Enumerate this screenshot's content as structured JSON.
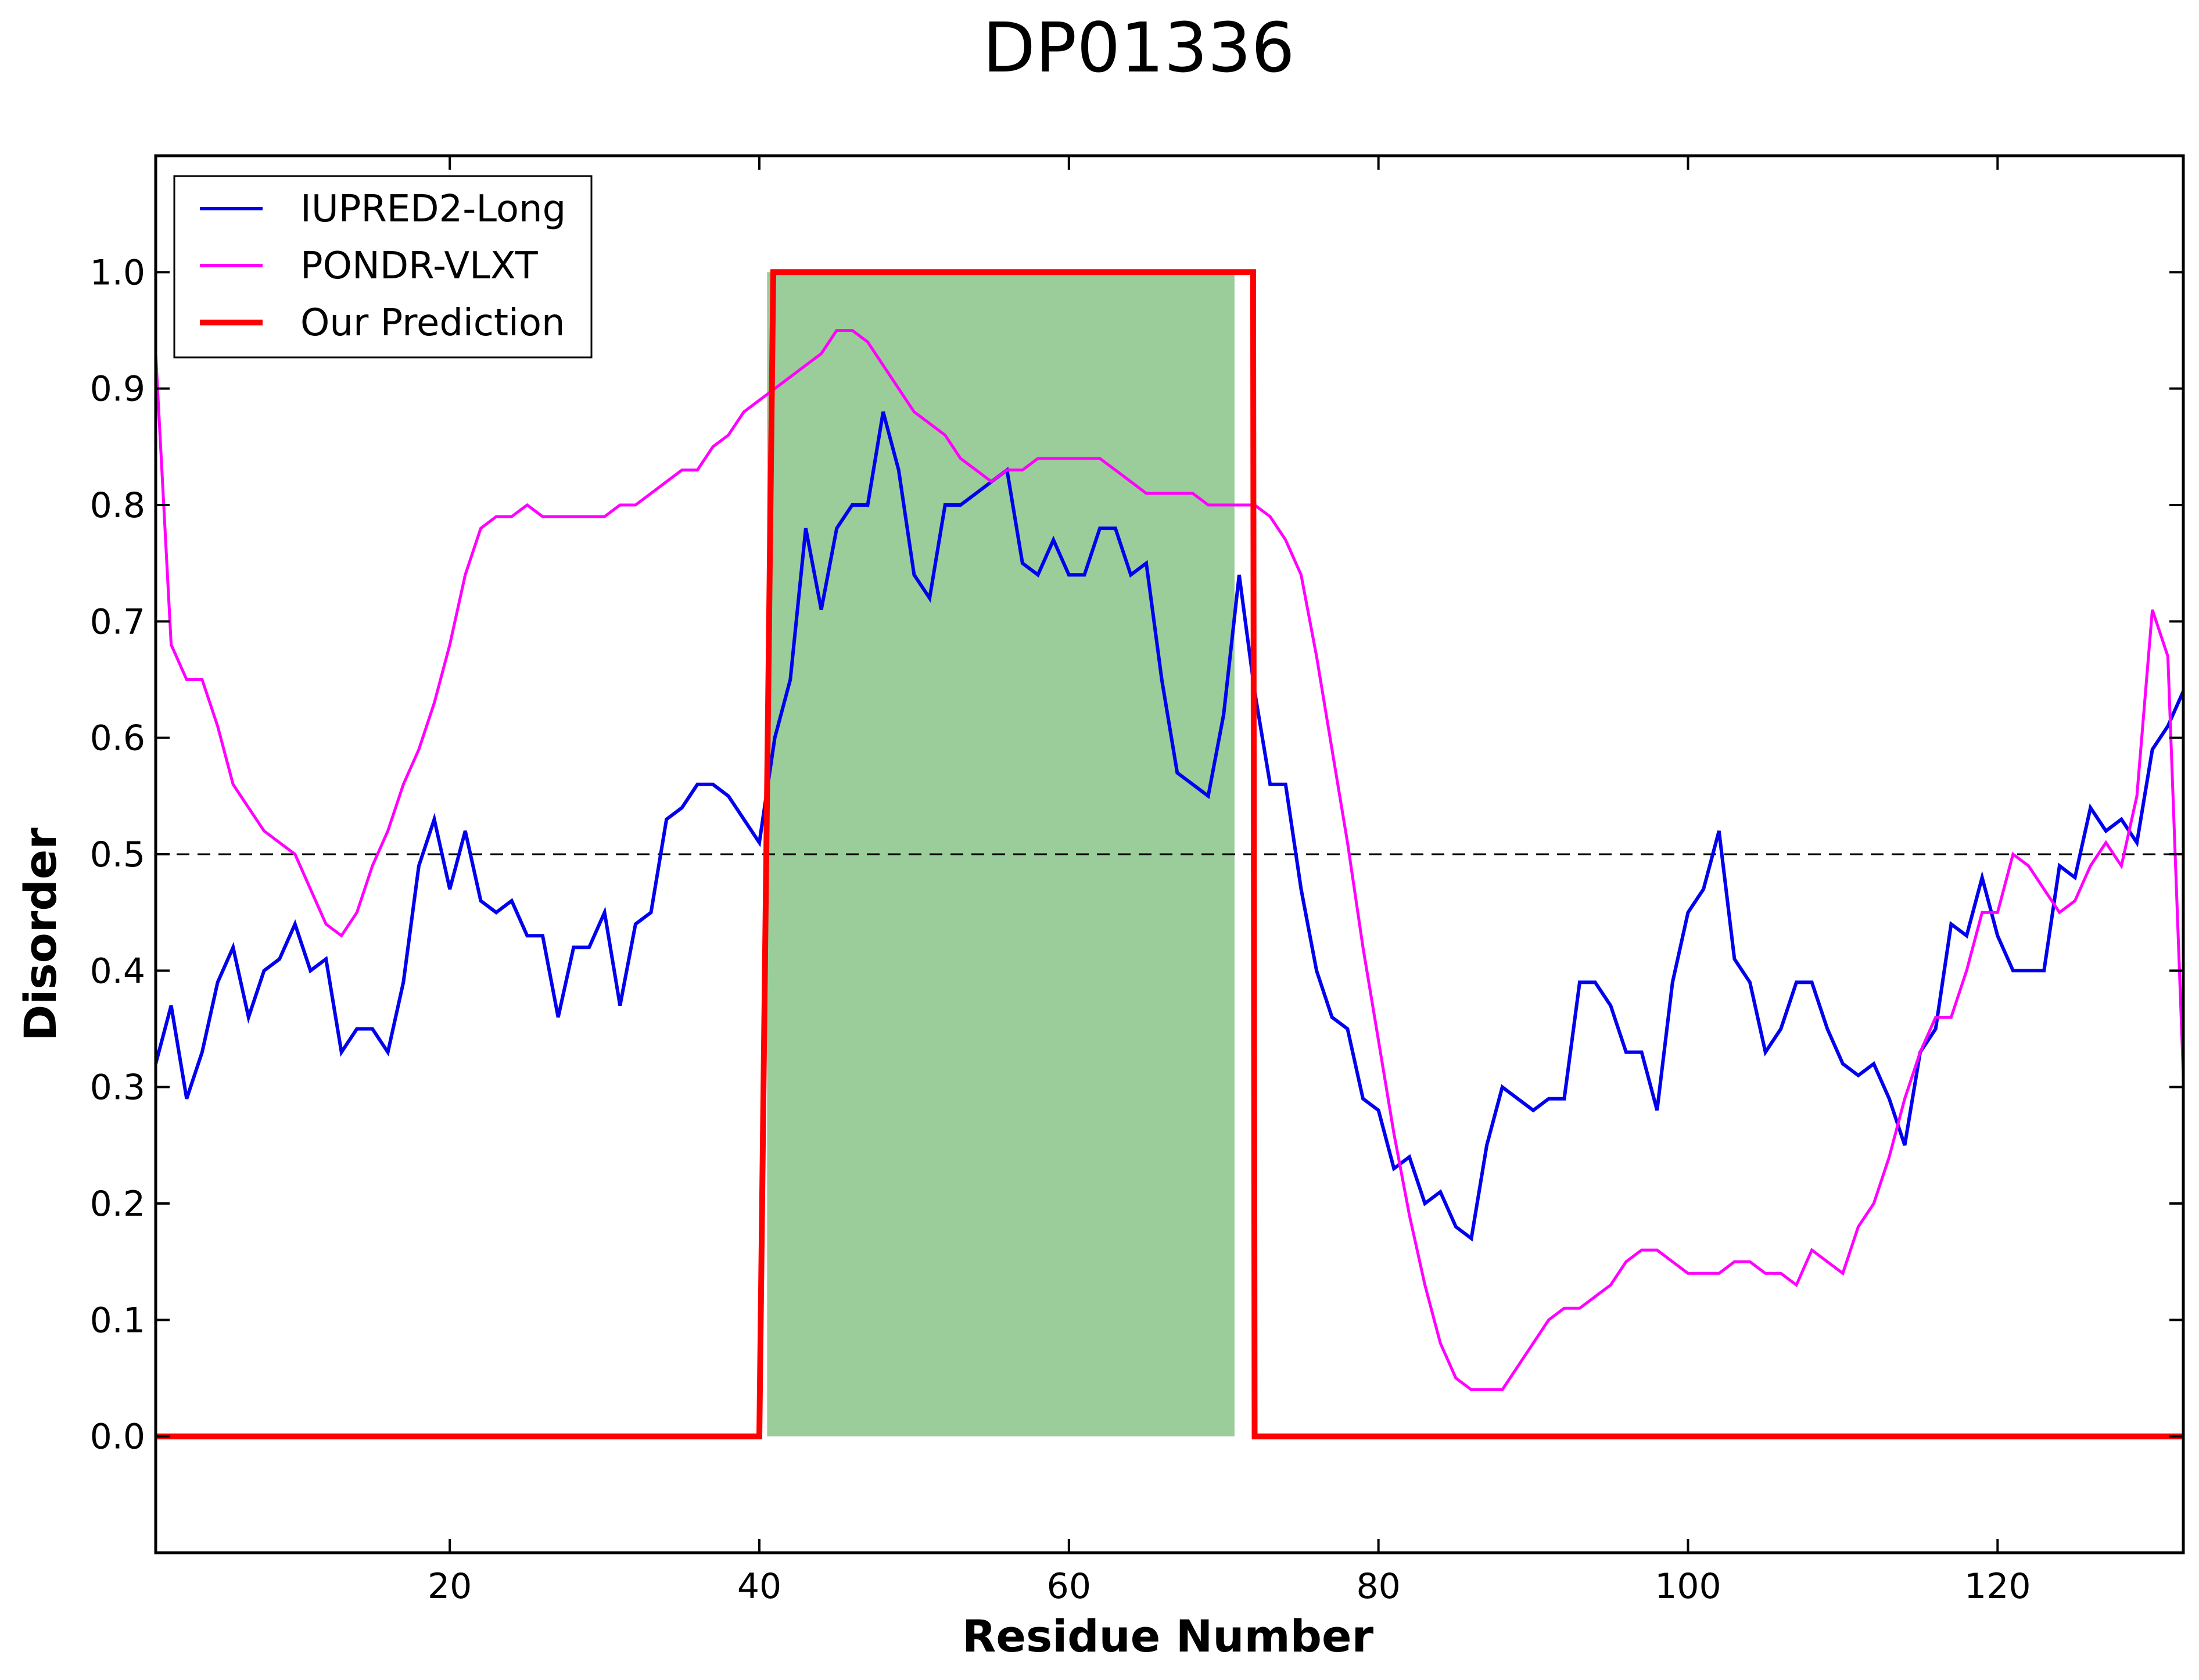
{
  "chart_data": {
    "type": "line",
    "title": "DP01336",
    "xlabel": "Residue Number",
    "ylabel": "Disorder",
    "xlim": [
      1,
      132
    ],
    "ylim": [
      -0.1,
      1.1
    ],
    "xticks": [
      20,
      40,
      60,
      80,
      100,
      120
    ],
    "yticks": [
      0.0,
      0.1,
      0.2,
      0.3,
      0.4,
      0.5,
      0.6,
      0.7,
      0.8,
      0.9,
      1.0
    ],
    "threshold": 0.5,
    "shaded_region": {
      "x": [
        40.5,
        70.7
      ],
      "y": [
        0,
        1.0
      ],
      "color": "#9acd9a"
    },
    "legend": {
      "position": "top-left"
    },
    "series": [
      {
        "name": "IUPRED2-Long",
        "color": "#0000ee",
        "x": [
          1,
          2,
          3,
          4,
          5,
          6,
          7,
          8,
          9,
          10,
          11,
          12,
          13,
          14,
          15,
          16,
          17,
          18,
          19,
          20,
          21,
          22,
          23,
          24,
          25,
          26,
          27,
          28,
          29,
          30,
          31,
          32,
          33,
          34,
          35,
          36,
          37,
          38,
          39,
          40,
          41,
          42,
          43,
          44,
          45,
          46,
          47,
          48,
          49,
          50,
          51,
          52,
          53,
          54,
          55,
          56,
          57,
          58,
          59,
          60,
          61,
          62,
          63,
          64,
          65,
          66,
          67,
          68,
          69,
          70,
          71,
          72,
          73,
          74,
          75,
          76,
          77,
          78,
          79,
          80,
          81,
          82,
          83,
          84,
          85,
          86,
          87,
          88,
          89,
          90,
          91,
          92,
          93,
          94,
          95,
          96,
          97,
          98,
          99,
          100,
          101,
          102,
          103,
          104,
          105,
          106,
          107,
          108,
          109,
          110,
          111,
          112,
          113,
          114,
          115,
          116,
          117,
          118,
          119,
          120,
          121,
          122,
          123,
          124,
          125,
          126,
          127,
          128,
          129,
          130,
          131,
          132
        ],
        "y": [
          0.32,
          0.37,
          0.29,
          0.33,
          0.39,
          0.42,
          0.36,
          0.4,
          0.41,
          0.44,
          0.4,
          0.41,
          0.33,
          0.35,
          0.35,
          0.33,
          0.39,
          0.49,
          0.53,
          0.47,
          0.52,
          0.46,
          0.45,
          0.46,
          0.43,
          0.43,
          0.36,
          0.42,
          0.42,
          0.45,
          0.37,
          0.44,
          0.45,
          0.53,
          0.54,
          0.56,
          0.56,
          0.55,
          0.53,
          0.51,
          0.6,
          0.65,
          0.78,
          0.71,
          0.78,
          0.8,
          0.8,
          0.88,
          0.83,
          0.74,
          0.72,
          0.8,
          0.8,
          0.81,
          0.82,
          0.83,
          0.75,
          0.74,
          0.77,
          0.74,
          0.74,
          0.78,
          0.78,
          0.74,
          0.75,
          0.65,
          0.57,
          0.56,
          0.55,
          0.62,
          0.74,
          0.64,
          0.56,
          0.56,
          0.47,
          0.4,
          0.36,
          0.35,
          0.29,
          0.28,
          0.23,
          0.24,
          0.2,
          0.21,
          0.18,
          0.17,
          0.25,
          0.3,
          0.29,
          0.28,
          0.29,
          0.29,
          0.39,
          0.39,
          0.37,
          0.33,
          0.33,
          0.28,
          0.39,
          0.45,
          0.47,
          0.52,
          0.41,
          0.39,
          0.33,
          0.35,
          0.39,
          0.39,
          0.35,
          0.32,
          0.31,
          0.32,
          0.29,
          0.25,
          0.33,
          0.35,
          0.44,
          0.43,
          0.48,
          0.43,
          0.4,
          0.4,
          0.4,
          0.49,
          0.48,
          0.54,
          0.52,
          0.53,
          0.51,
          0.59,
          0.61,
          0.64
        ]
      },
      {
        "name": "PONDR-VLXT",
        "color": "#ff00ff",
        "x": [
          1,
          2,
          3,
          4,
          5,
          6,
          7,
          8,
          9,
          10,
          11,
          12,
          13,
          14,
          15,
          16,
          17,
          18,
          19,
          20,
          21,
          22,
          23,
          24,
          25,
          26,
          27,
          28,
          29,
          30,
          31,
          32,
          33,
          34,
          35,
          36,
          37,
          38,
          39,
          40,
          41,
          42,
          43,
          44,
          45,
          46,
          47,
          48,
          49,
          50,
          51,
          52,
          53,
          54,
          55,
          56,
          57,
          58,
          59,
          60,
          61,
          62,
          63,
          64,
          65,
          66,
          67,
          68,
          69,
          70,
          71,
          72,
          73,
          74,
          75,
          76,
          77,
          78,
          79,
          80,
          81,
          82,
          83,
          84,
          85,
          86,
          87,
          88,
          89,
          90,
          91,
          92,
          93,
          94,
          95,
          96,
          97,
          98,
          99,
          100,
          101,
          102,
          103,
          104,
          105,
          106,
          107,
          108,
          109,
          110,
          111,
          112,
          113,
          114,
          115,
          116,
          117,
          118,
          119,
          120,
          121,
          122,
          123,
          124,
          125,
          126,
          127,
          128,
          129,
          130,
          131,
          132
        ],
        "y": [
          0.93,
          0.68,
          0.65,
          0.65,
          0.61,
          0.56,
          0.54,
          0.52,
          0.51,
          0.5,
          0.47,
          0.44,
          0.43,
          0.45,
          0.49,
          0.52,
          0.56,
          0.59,
          0.63,
          0.68,
          0.74,
          0.78,
          0.79,
          0.79,
          0.8,
          0.79,
          0.79,
          0.79,
          0.79,
          0.79,
          0.8,
          0.8,
          0.81,
          0.82,
          0.83,
          0.83,
          0.85,
          0.86,
          0.88,
          0.89,
          0.9,
          0.91,
          0.92,
          0.93,
          0.95,
          0.95,
          0.94,
          0.92,
          0.9,
          0.88,
          0.87,
          0.86,
          0.84,
          0.83,
          0.82,
          0.83,
          0.83,
          0.84,
          0.84,
          0.84,
          0.84,
          0.84,
          0.83,
          0.82,
          0.81,
          0.81,
          0.81,
          0.81,
          0.8,
          0.8,
          0.8,
          0.8,
          0.79,
          0.77,
          0.74,
          0.67,
          0.59,
          0.51,
          0.42,
          0.34,
          0.26,
          0.19,
          0.13,
          0.08,
          0.05,
          0.04,
          0.04,
          0.04,
          0.06,
          0.08,
          0.1,
          0.11,
          0.11,
          0.12,
          0.13,
          0.15,
          0.16,
          0.16,
          0.15,
          0.14,
          0.14,
          0.14,
          0.15,
          0.15,
          0.14,
          0.14,
          0.13,
          0.16,
          0.15,
          0.14,
          0.18,
          0.2,
          0.24,
          0.29,
          0.33,
          0.36,
          0.36,
          0.4,
          0.45,
          0.45,
          0.5,
          0.49,
          0.47,
          0.45,
          0.46,
          0.49,
          0.51,
          0.49,
          0.55,
          0.71,
          0.67,
          0.31
        ]
      },
      {
        "name": "Our Prediction",
        "color": "#ff0000",
        "x": [
          1,
          40,
          40.9,
          41,
          71,
          71.9,
          72,
          132
        ],
        "y": [
          0,
          0,
          1,
          1,
          1,
          1,
          0,
          0
        ]
      }
    ]
  }
}
